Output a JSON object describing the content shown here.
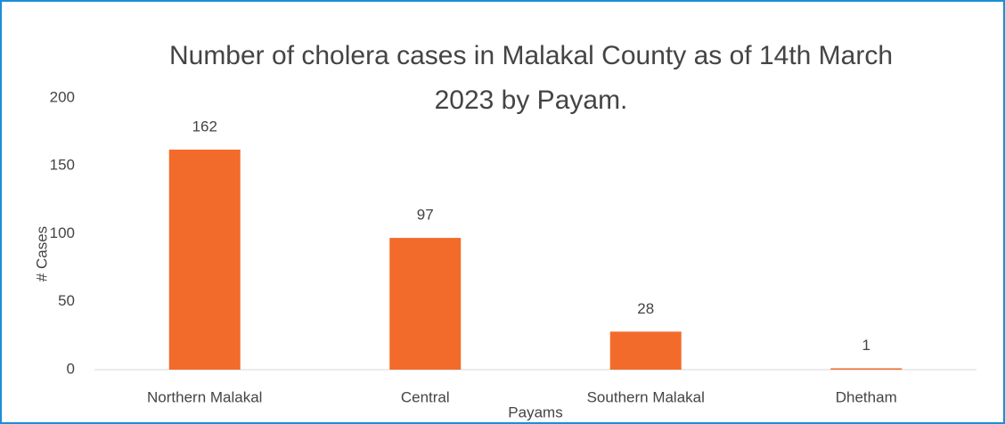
{
  "chart_data": {
    "type": "bar",
    "title": "Number of cholera cases in Malakal County as of 14th March 2023 by Payam.",
    "x_label": "Payams",
    "y_label": "# Cases",
    "categories": [
      "Northern Malakal",
      "Central",
      "Southern Malakal",
      "Dhetham"
    ],
    "values": [
      162,
      97,
      28,
      1
    ],
    "color": "#f26b2b",
    "ylim": [
      0,
      200
    ],
    "yticks": [
      0,
      50,
      100,
      150,
      200
    ],
    "grid": false
  }
}
